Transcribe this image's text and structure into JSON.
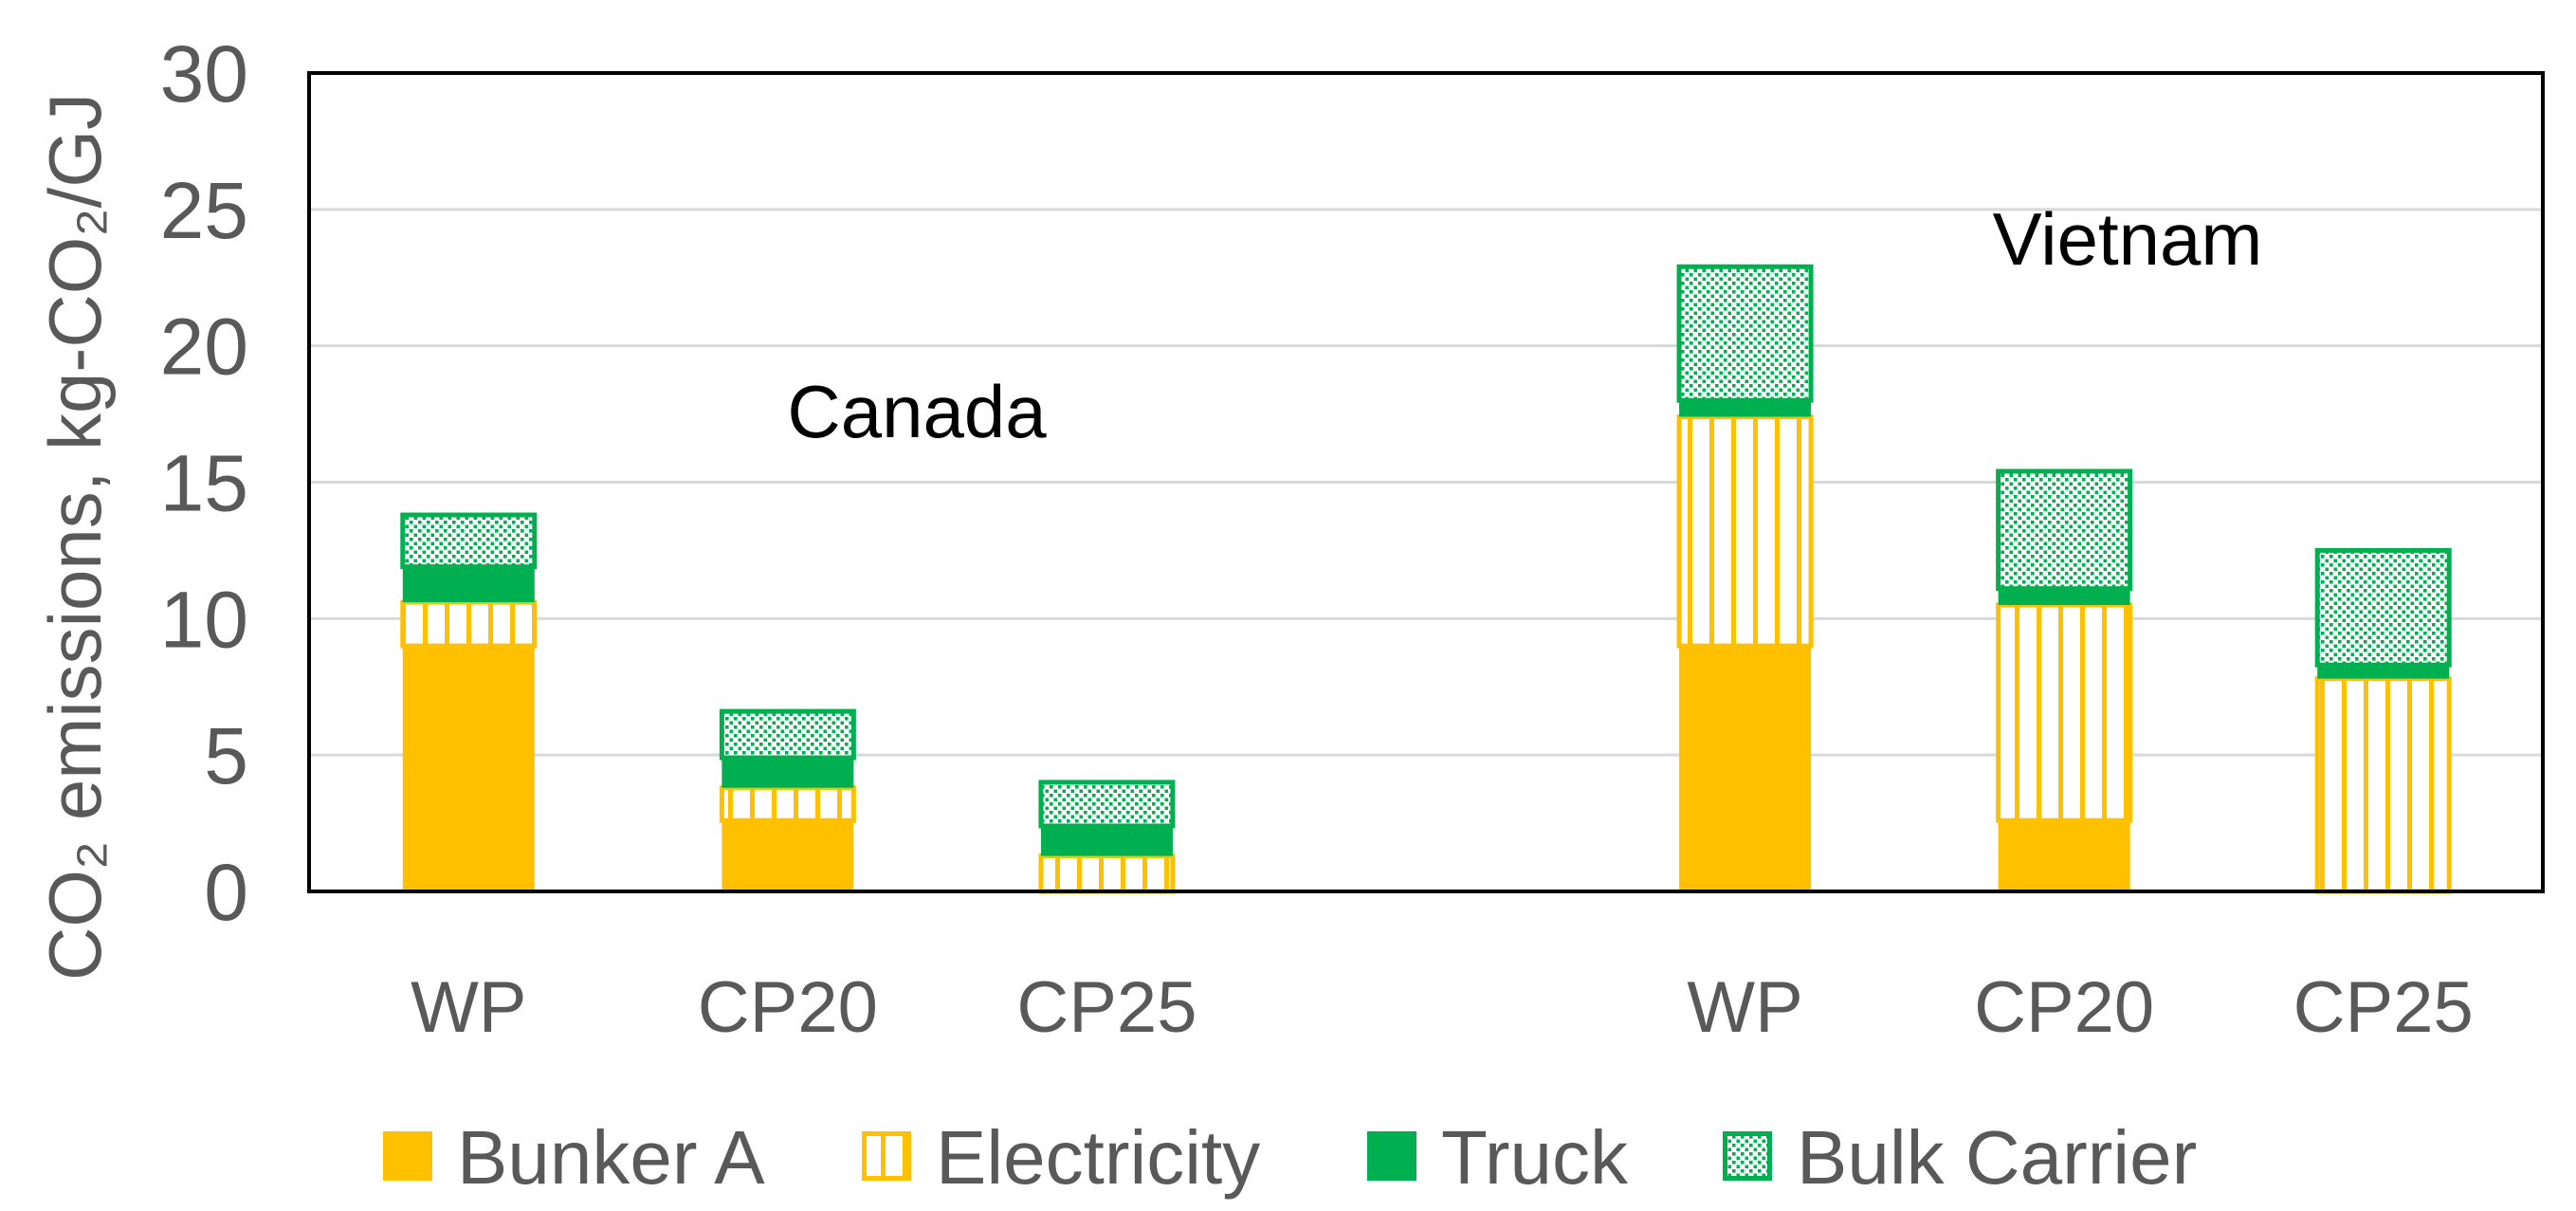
{
  "chart_data": {
    "type": "bar",
    "stacked": true,
    "groups": [
      {
        "name": "Canada",
        "categories": [
          "WP",
          "CP20",
          "CP25"
        ]
      },
      {
        "name": "Vietnam",
        "categories": [
          "WP",
          "CP20",
          "CP25"
        ]
      }
    ],
    "series": [
      {
        "name": "Bunker A",
        "color": "#FFC000",
        "values": [
          9.0,
          2.6,
          0,
          9.0,
          2.6,
          0
        ]
      },
      {
        "name": "Electricity",
        "color": "#FFC000",
        "values": [
          1.6,
          1.2,
          1.3,
          8.4,
          7.9,
          7.8
        ]
      },
      {
        "name": "Truck",
        "color": "#00B050",
        "values": [
          1.3,
          1.1,
          1.1,
          0.6,
          0.6,
          0.5
        ]
      },
      {
        "name": "Bulk Carrier",
        "color": "#00B050",
        "values": [
          1.9,
          1.7,
          1.6,
          4.9,
          4.3,
          4.2
        ]
      }
    ],
    "ylabel": "CO₂ emissions, kg-CO₂/GJ",
    "ylim": [
      0,
      30
    ],
    "yticks": [
      0,
      5,
      10,
      15,
      20,
      25,
      30
    ],
    "grid": true,
    "legend": "bottom"
  }
}
